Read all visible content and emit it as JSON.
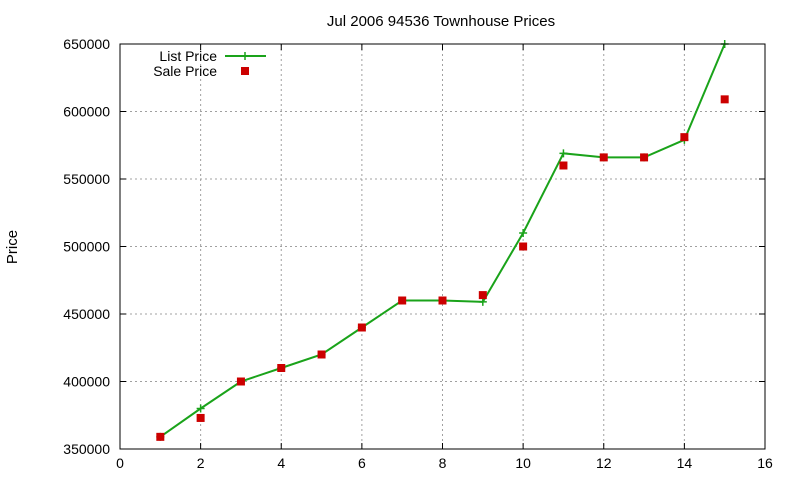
{
  "chart_data": {
    "type": "line",
    "title": "Jul 2006 94536 Townhouse Prices",
    "xlabel": "",
    "ylabel": "Price",
    "xlim": [
      0,
      16
    ],
    "ylim": [
      350000,
      650000
    ],
    "xticks": [
      0,
      2,
      4,
      6,
      8,
      10,
      12,
      14,
      16
    ],
    "yticks": [
      350000,
      400000,
      450000,
      500000,
      550000,
      600000,
      650000
    ],
    "grid": true,
    "legend_position": "top-left",
    "series": [
      {
        "name": "List Price",
        "kind": "line-points",
        "marker": "plus",
        "color": "#1aa31a",
        "x": [
          1,
          2,
          3,
          4,
          5,
          6,
          7,
          8,
          9,
          10,
          11,
          12,
          13,
          14,
          15
        ],
        "y": [
          359000,
          380000,
          400000,
          410000,
          420000,
          440000,
          460000,
          460000,
          459000,
          510000,
          569000,
          566000,
          566000,
          579000,
          650000
        ]
      },
      {
        "name": "Sale Price",
        "kind": "points",
        "marker": "square",
        "color": "#cc0000",
        "x": [
          1,
          2,
          3,
          4,
          5,
          6,
          7,
          8,
          9,
          10,
          11,
          12,
          13,
          14,
          15
        ],
        "y": [
          359000,
          373000,
          400000,
          410000,
          420000,
          440000,
          460000,
          460000,
          464000,
          500000,
          560000,
          566000,
          566000,
          581000,
          609000
        ]
      }
    ]
  }
}
